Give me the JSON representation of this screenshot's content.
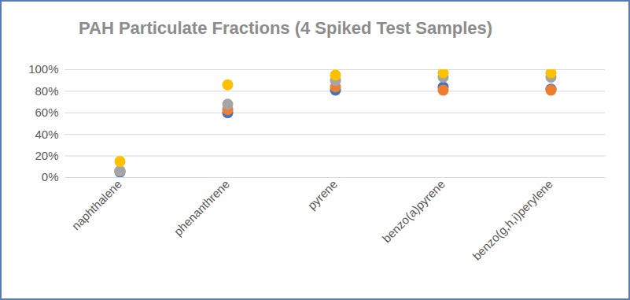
{
  "chart_data": {
    "type": "scatter",
    "title": "PAH Particulate Fractions (4 Spiked Test Samples)",
    "categories": [
      "naphthalene",
      "phenanthrene",
      "pyrene",
      "benzo(a)pyrene",
      "benzo(g,h,i)perylene"
    ],
    "series": [
      {
        "color": "#4472C4",
        "values": [
          5,
          60,
          81,
          84,
          82
        ]
      },
      {
        "color": "#ED7D31",
        "values": [
          6,
          63,
          84,
          81,
          81
        ]
      },
      {
        "color": "#A5A5A5",
        "values": [
          6,
          68,
          90,
          93,
          93
        ]
      },
      {
        "color": "#FFC000",
        "values": [
          15,
          86,
          95,
          97,
          97
        ]
      }
    ],
    "ylim": [
      0,
      100
    ],
    "yticks": [
      {
        "value": 0,
        "label": "0%"
      },
      {
        "value": 20,
        "label": "20%"
      },
      {
        "value": 40,
        "label": "40%"
      },
      {
        "value": 60,
        "label": "60%"
      },
      {
        "value": 80,
        "label": "80%"
      },
      {
        "value": 100,
        "label": "100%"
      }
    ],
    "grid": true,
    "marker": "circle"
  }
}
